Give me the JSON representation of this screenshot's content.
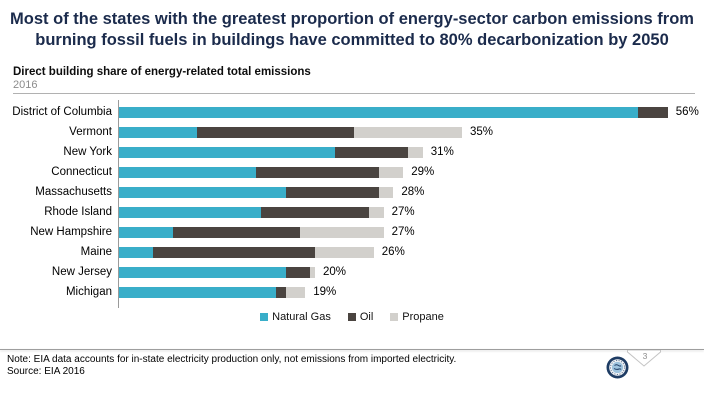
{
  "slide": {
    "title_line1": "Most of the states with the greatest proportion of energy-sector carbon emissions from",
    "title_line2": "burning fossil fuels in buildings have committed to 80% decarbonization by 2050",
    "page_number": "3"
  },
  "chart_header": {
    "title": "Direct building share of energy-related total emissions",
    "subtitle": "2016"
  },
  "chart_data": {
    "type": "bar",
    "orientation": "horizontal",
    "stacked": true,
    "unit": "percent",
    "xlim": [
      0,
      60
    ],
    "grid": false,
    "legend_position": "bottom",
    "categories": [
      "District of Columbia",
      "Vermont",
      "New York",
      "Connecticut",
      "Massachusetts",
      "Rhode Island",
      "New Hampshire",
      "Maine",
      "New Jersey",
      "Michigan"
    ],
    "series": [
      {
        "name": "Natural Gas",
        "color": "#39AEC9",
        "values": [
          53,
          8,
          22,
          14,
          17,
          14.5,
          5.5,
          3.5,
          17,
          16
        ]
      },
      {
        "name": "Oil",
        "color": "#4A4440",
        "values": [
          3,
          16,
          7.5,
          12.5,
          9.5,
          11,
          13,
          16.5,
          2.5,
          1
        ]
      },
      {
        "name": "Propane",
        "color": "#D2D0CC",
        "values": [
          0,
          11,
          1.5,
          2.5,
          1.5,
          1.5,
          8.5,
          6,
          0.5,
          2
        ]
      }
    ],
    "totals": [
      56,
      35,
      31,
      29,
      28,
      27,
      27,
      26,
      20,
      19
    ],
    "value_labels": [
      "56%",
      "35%",
      "31%",
      "29%",
      "28%",
      "27%",
      "27%",
      "26%",
      "20%",
      "19%"
    ]
  },
  "footer": {
    "note": "Note: EIA data accounts for in-state electricity production only, not emissions from imported electricity.",
    "source": "Source: EIA 2016"
  },
  "icons": {
    "logo": "circular-organization-seal",
    "page_marker": "ribbon-chevron"
  },
  "colors": {
    "title_navy": "#1B2B4C",
    "axis_gray": "#9A9A9A",
    "subtitle_gray": "#8C8C8C"
  }
}
